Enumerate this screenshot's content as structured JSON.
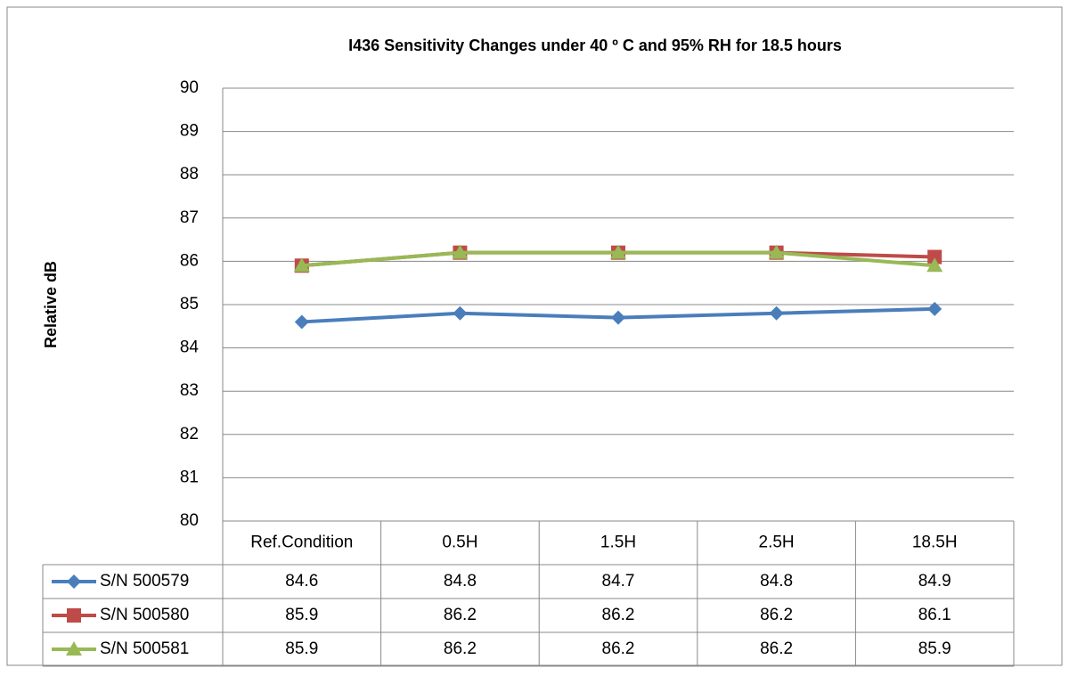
{
  "chart_data": {
    "type": "line",
    "title": "I436 Sensitivity Changes under 40 º C and 95% RH for 18.5 hours",
    "y_label": "Relative dB",
    "categories": [
      "Ref.Condition",
      "0.5H",
      "1.5H",
      "2.5H",
      "18.5H"
    ],
    "series": [
      {
        "name": "S/N 500579",
        "color": "#4a7ebb",
        "marker": "diamond",
        "values": [
          84.6,
          84.8,
          84.7,
          84.8,
          84.9
        ]
      },
      {
        "name": "S/N 500580",
        "color": "#be4b48",
        "marker": "square",
        "values": [
          85.9,
          86.2,
          86.2,
          86.2,
          86.1
        ]
      },
      {
        "name": "S/N 500581",
        "color": "#98b954",
        "marker": "triangle",
        "values": [
          85.9,
          86.2,
          86.2,
          86.2,
          85.9
        ]
      }
    ],
    "ylim": [
      80,
      90
    ],
    "yticks": [
      80,
      81,
      82,
      83,
      84,
      85,
      86,
      87,
      88,
      89,
      90
    ],
    "grid": true,
    "data_table": true
  }
}
